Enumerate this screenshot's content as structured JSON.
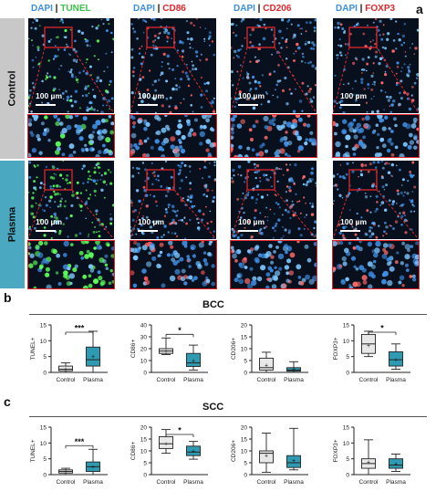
{
  "figure": {
    "panel_a_label": "a",
    "panel_b_label": "b",
    "panel_c_label": "c",
    "stains": [
      {
        "dapi": "DAPI",
        "marker": "TUNEL",
        "marker_color": "#3cc34a"
      },
      {
        "dapi": "DAPI",
        "marker": "CD86",
        "marker_color": "#e0262b"
      },
      {
        "dapi": "DAPI",
        "marker": "CD206",
        "marker_color": "#e0262b"
      },
      {
        "dapi": "DAPI",
        "marker": "FOXP3",
        "marker_color": "#e0262b"
      }
    ],
    "row_labels": [
      "Control",
      "Plasma"
    ],
    "row_label_colors": [
      "#c8c8c8",
      "#4aa8c0"
    ],
    "scale_bar": "100 µm",
    "section_b_title": "BCC",
    "section_c_title": "SCC",
    "significance": [
      "***",
      "*",
      "*",
      "***",
      "*"
    ]
  },
  "chart_data": [
    {
      "type": "box",
      "section": "BCC",
      "ylabel": "TUNEL+",
      "ylim": [
        0,
        15
      ],
      "yticks": [
        0,
        5,
        10,
        15
      ],
      "categories": [
        "Control",
        "Plasma"
      ],
      "boxes": [
        {
          "min": 0,
          "q1": 0.5,
          "median": 1,
          "q3": 2,
          "max": 3,
          "mean": 1.2
        },
        {
          "min": 0,
          "q1": 2,
          "median": 4,
          "q3": 8,
          "max": 13,
          "mean": 5
        }
      ],
      "significance": "***"
    },
    {
      "type": "box",
      "section": "BCC",
      "ylabel": "CD86+",
      "ylim": [
        0,
        40
      ],
      "yticks": [
        0,
        10,
        20,
        30,
        40
      ],
      "categories": [
        "Control",
        "Plasma"
      ],
      "boxes": [
        {
          "min": 15,
          "q1": 16,
          "median": 18,
          "q3": 20,
          "max": 29,
          "mean": 18
        },
        {
          "min": 2,
          "q1": 5,
          "median": 8,
          "q3": 16,
          "max": 23,
          "mean": 10
        }
      ],
      "significance": "*"
    },
    {
      "type": "box",
      "section": "BCC",
      "ylabel": "CD206+",
      "ylim": [
        0,
        20
      ],
      "yticks": [
        0,
        5,
        10,
        15,
        20
      ],
      "categories": [
        "Control",
        "Plasma"
      ],
      "boxes": [
        {
          "min": 0,
          "q1": 1,
          "median": 2,
          "q3": 6,
          "max": 8.5,
          "mean": 3
        },
        {
          "min": 0,
          "q1": 0.5,
          "median": 1,
          "q3": 2,
          "max": 4.5,
          "mean": 1.3
        }
      ],
      "significance": ""
    },
    {
      "type": "box",
      "section": "BCC",
      "ylabel": "FOXP3+",
      "ylim": [
        0,
        15
      ],
      "yticks": [
        0,
        5,
        10,
        15
      ],
      "categories": [
        "Control",
        "Plasma"
      ],
      "boxes": [
        {
          "min": 5,
          "q1": 6,
          "median": 9,
          "q3": 12,
          "max": 13,
          "mean": 8.5
        },
        {
          "min": 1,
          "q1": 2,
          "median": 4,
          "q3": 6.5,
          "max": 9,
          "mean": 4
        }
      ],
      "significance": "*"
    },
    {
      "type": "box",
      "section": "SCC",
      "ylabel": "TUNEL+",
      "ylim": [
        0,
        15
      ],
      "yticks": [
        0,
        5,
        10,
        15
      ],
      "categories": [
        "Control",
        "Plasma"
      ],
      "boxes": [
        {
          "min": 0,
          "q1": 0.5,
          "median": 1,
          "q3": 1.5,
          "max": 2,
          "mean": 1
        },
        {
          "min": 0,
          "q1": 1,
          "median": 2.5,
          "q3": 4,
          "max": 8,
          "mean": 2.5
        }
      ],
      "significance": "***"
    },
    {
      "type": "box",
      "section": "SCC",
      "ylabel": "CD86+",
      "ylim": [
        0,
        20
      ],
      "yticks": [
        0,
        5,
        10,
        15,
        20
      ],
      "categories": [
        "Control",
        "Plasma"
      ],
      "boxes": [
        {
          "min": 9,
          "q1": 11,
          "median": 13,
          "q3": 16,
          "max": 19,
          "mean": 13
        },
        {
          "min": 6.5,
          "q1": 8,
          "median": 9.5,
          "q3": 12,
          "max": 14,
          "mean": 10
        }
      ],
      "significance": "*"
    },
    {
      "type": "box",
      "section": "SCC",
      "ylabel": "CD206+",
      "ylim": [
        0,
        20
      ],
      "yticks": [
        0,
        5,
        10,
        15,
        20
      ],
      "categories": [
        "Control",
        "Plasma"
      ],
      "boxes": [
        {
          "min": 1,
          "q1": 5,
          "median": 9,
          "q3": 10,
          "max": 17.5,
          "mean": 8
        },
        {
          "min": 2,
          "q1": 3,
          "median": 5,
          "q3": 8,
          "max": 19.5,
          "mean": 6
        }
      ],
      "significance": ""
    },
    {
      "type": "box",
      "section": "SCC",
      "ylabel": "FOXP3+",
      "ylim": [
        0,
        15
      ],
      "yticks": [
        0,
        5,
        10,
        15
      ],
      "categories": [
        "Control",
        "Plasma"
      ],
      "boxes": [
        {
          "min": 0,
          "q1": 2,
          "median": 3.5,
          "q3": 5,
          "max": 11,
          "mean": 4
        },
        {
          "min": 1,
          "q1": 2,
          "median": 3,
          "q3": 5,
          "max": 6.5,
          "mean": 3.5
        }
      ],
      "significance": ""
    }
  ]
}
